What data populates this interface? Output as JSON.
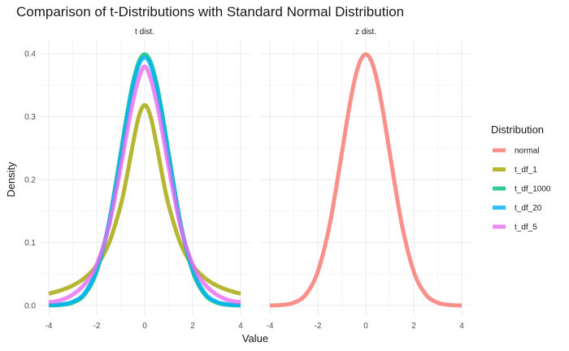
{
  "chart_data": {
    "type": "line",
    "title": "Comparison of t-Distributions with Standard Normal Distribution",
    "xlabel": "Value",
    "ylabel": "Density",
    "xlim": [
      -4,
      4
    ],
    "ylim": [
      0,
      0.4
    ],
    "x_ticks": [
      -4,
      -2,
      0,
      2,
      4
    ],
    "x_tick_labels": [
      "-4",
      "-2",
      "0",
      "2",
      "4"
    ],
    "y_ticks": [
      0.0,
      0.1,
      0.2,
      0.3,
      0.4
    ],
    "y_tick_labels": [
      "0.0",
      "0.1",
      "0.2",
      "0.3",
      "0.4"
    ],
    "grid": true,
    "legend": {
      "title": "Distribution",
      "position": "right",
      "entries": [
        {
          "name": "normal",
          "color": "#F8766D"
        },
        {
          "name": "t_df_1",
          "color": "#A3A500"
        },
        {
          "name": "t_df_1000",
          "color": "#00BF7D"
        },
        {
          "name": "t_df_20",
          "color": "#00B0F6"
        },
        {
          "name": "t_df_5",
          "color": "#E76BF3"
        }
      ]
    },
    "x": [
      -4,
      -3.5,
      -3,
      -2.5,
      -2,
      -1.5,
      -1,
      -0.75,
      -0.5,
      -0.25,
      0,
      0.25,
      0.5,
      0.75,
      1,
      1.5,
      2,
      2.5,
      3,
      3.5,
      4
    ],
    "panels": [
      {
        "label": "t dist.",
        "series": [
          {
            "name": "t_df_1",
            "color": "#A3A500",
            "values": [
              0.0187,
              0.024,
              0.0318,
              0.0439,
              0.0637,
              0.0979,
              0.1592,
              0.2037,
              0.2546,
              0.2996,
              0.3183,
              0.2996,
              0.2546,
              0.2037,
              0.1592,
              0.0979,
              0.0637,
              0.0439,
              0.0318,
              0.024,
              0.0187
            ]
          },
          {
            "name": "t_df_1000",
            "color": "#00BF7D",
            "values": [
              0.0002,
              0.0009,
              0.0045,
              0.0176,
              0.0541,
              0.1296,
              0.242,
              0.3011,
              0.352,
              0.3866,
              0.3988,
              0.3866,
              0.352,
              0.3011,
              0.242,
              0.1296,
              0.0541,
              0.0176,
              0.0045,
              0.0009,
              0.0002
            ]
          },
          {
            "name": "t_df_20",
            "color": "#00B0F6",
            "values": [
              0.0005,
              0.0017,
              0.006,
              0.0197,
              0.0581,
              0.1289,
              0.236,
              0.2947,
              0.3458,
              0.3814,
              0.394,
              0.3814,
              0.3458,
              0.2947,
              0.236,
              0.1289,
              0.0581,
              0.0197,
              0.006,
              0.0017,
              0.0005
            ]
          },
          {
            "name": "t_df_5",
            "color": "#E76BF3",
            "values": [
              0.0051,
              0.0084,
              0.0173,
              0.0339,
              0.0651,
              0.1245,
              0.2197,
              0.2731,
              0.322,
              0.36,
              0.3796,
              0.36,
              0.322,
              0.2731,
              0.2197,
              0.1245,
              0.0651,
              0.0339,
              0.0173,
              0.0084,
              0.0051
            ]
          }
        ]
      },
      {
        "label": "z dist.",
        "series": [
          {
            "name": "normal",
            "color": "#F8766D",
            "values": [
              0.0001,
              0.0009,
              0.0044,
              0.0175,
              0.054,
              0.1295,
              0.242,
              0.3011,
              0.3521,
              0.3867,
              0.3989,
              0.3867,
              0.3521,
              0.3011,
              0.242,
              0.1295,
              0.054,
              0.0175,
              0.0044,
              0.0009,
              0.0001
            ]
          }
        ]
      }
    ]
  }
}
